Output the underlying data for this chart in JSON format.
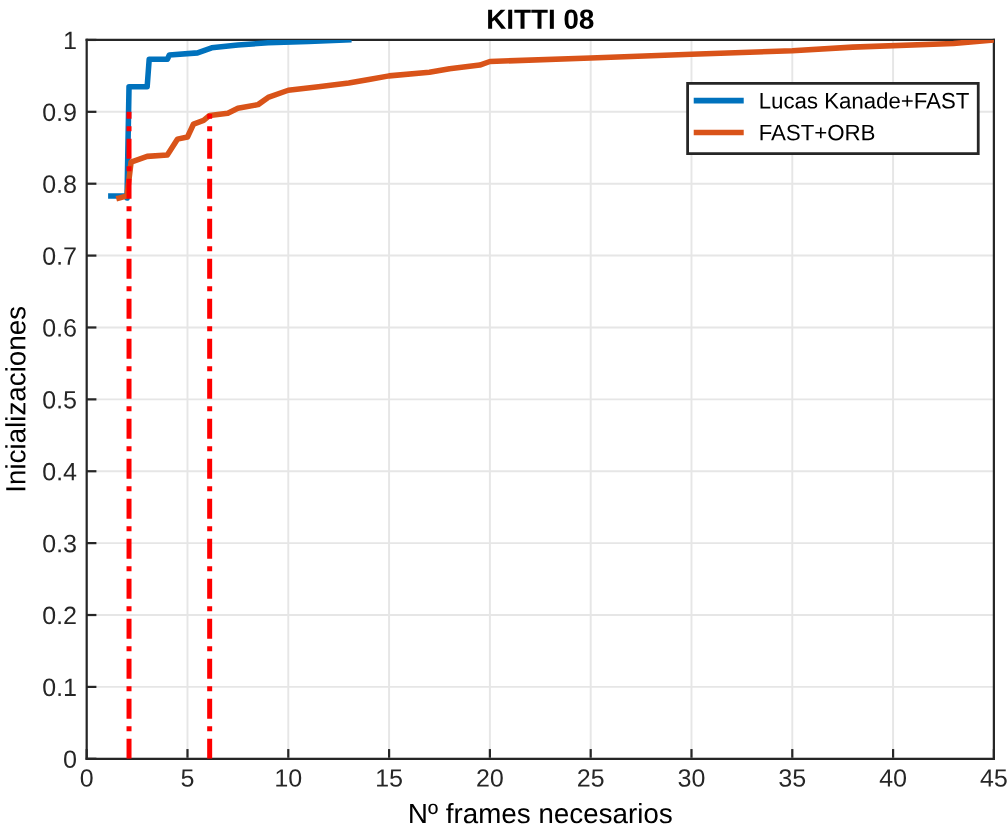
{
  "chart_data": {
    "type": "line",
    "title": "KITTI 08",
    "xlabel": "Nº frames necesarios",
    "ylabel": "Inicializaciones",
    "xlim": [
      0,
      45
    ],
    "xticks": [
      0,
      5,
      10,
      15,
      20,
      25,
      30,
      35,
      40,
      45
    ],
    "ylim": [
      0,
      1
    ],
    "yticks": [
      0,
      0.1,
      0.2,
      0.3,
      0.4,
      0.5,
      0.6,
      0.7,
      0.8,
      0.9,
      1
    ],
    "grid": true,
    "legend": "top right",
    "line_style": "solid",
    "marker": "none",
    "series": [
      {
        "name": "Lucas Kanade+FAST",
        "color": "#0072bd",
        "x": [
          1.2,
          2.0,
          2.0,
          2.1,
          3.0,
          3.1,
          4.0,
          4.1,
          5.5,
          6.2,
          7.5,
          9,
          11,
          13
        ],
        "values": [
          0.783,
          0.783,
          0.78,
          0.935,
          0.935,
          0.973,
          0.973,
          0.979,
          0.982,
          0.989,
          0.993,
          0.996,
          0.998,
          1.0
        ]
      },
      {
        "name": "FAST+ORB",
        "color": "#d95319",
        "x": [
          1.6,
          2.0,
          2.2,
          3.0,
          4.0,
          4.5,
          5.0,
          5.3,
          5.8,
          6.1,
          7.0,
          7.5,
          8.5,
          9.0,
          10.0,
          11.5,
          13,
          14,
          15,
          17,
          18,
          19.5,
          20,
          25,
          30,
          35,
          38,
          43,
          45
        ],
        "values": [
          0.78,
          0.783,
          0.83,
          0.838,
          0.84,
          0.862,
          0.865,
          0.883,
          0.888,
          0.895,
          0.898,
          0.905,
          0.91,
          0.92,
          0.93,
          0.935,
          0.94,
          0.945,
          0.95,
          0.955,
          0.96,
          0.965,
          0.97,
          0.975,
          0.98,
          0.985,
          0.99,
          0.995,
          1.0
        ]
      },
      {
        "color": "#ff0000",
        "line_style": "dashed",
        "x": [
          2.1,
          2.1
        ],
        "values": [
          0,
          0.9
        ]
      },
      {
        "color": "#ff0000",
        "line_style": "dashed",
        "x": [
          6.1,
          6.1
        ],
        "values": [
          0,
          0.897
        ]
      }
    ]
  }
}
